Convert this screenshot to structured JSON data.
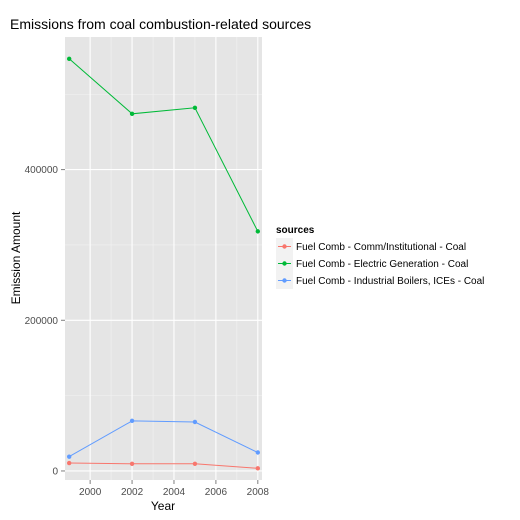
{
  "chart_data": {
    "type": "line",
    "title": "Emissions from coal combustion-related sources",
    "xlabel": "Year",
    "ylabel": "Emission Amount",
    "x": [
      1999,
      2002,
      2005,
      2008
    ],
    "xlim": [
      1998.8,
      2008.2
    ],
    "ylim": [
      -12000,
      576000
    ],
    "xticks": [
      2000,
      2002,
      2004,
      2006,
      2008
    ],
    "xtick_labels": [
      "2000",
      "2002",
      "2004",
      "2006",
      "2008"
    ],
    "yticks": [
      0,
      200000,
      400000
    ],
    "ytick_labels": [
      "0",
      "200000",
      "400000"
    ],
    "grid": true,
    "legend": {
      "title": "sources",
      "placement": "right"
    },
    "series": [
      {
        "name": "Fuel Comb - Comm/Institutional - Coal",
        "color": "#F8766D",
        "values": [
          10500,
          9500,
          9500,
          3500
        ]
      },
      {
        "name": "Fuel Comb - Electric Generation - Coal",
        "color": "#00BA38",
        "values": [
          547000,
          474000,
          482000,
          318000
        ]
      },
      {
        "name": "Fuel Comb - Industrial Boilers, ICEs - Coal",
        "color": "#619CFF",
        "values": [
          19000,
          66500,
          65000,
          24500
        ]
      }
    ]
  }
}
